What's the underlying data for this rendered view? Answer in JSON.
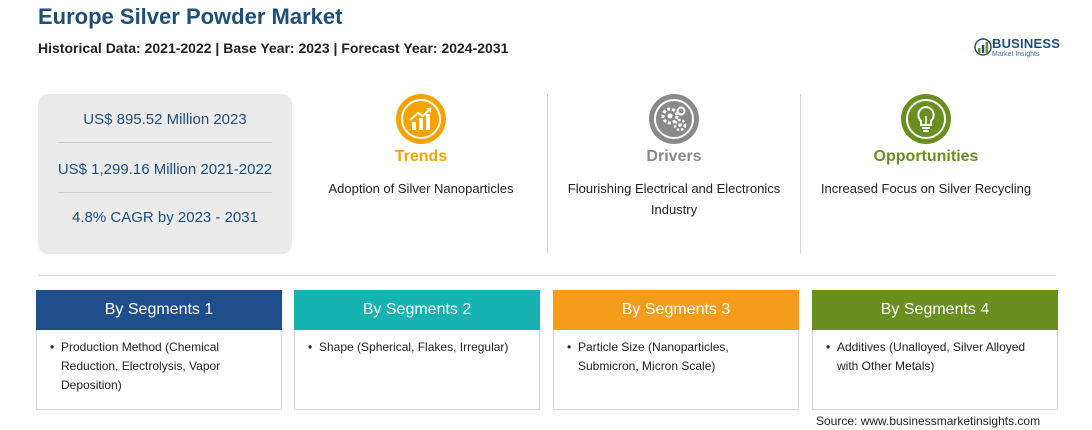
{
  "header": {
    "title": "Europe Silver Powder Market",
    "subtitle": "Historical Data: 2021-2022 | Base Year: 2023 | Forecast Year: 2024-2031"
  },
  "logo": {
    "brand": "BUSINESS",
    "tagline": "Market Insights",
    "icon": "bar-chart-logo-icon",
    "color": "#1f4e79"
  },
  "stats": [
    "US$ 895.52 Million 2023",
    "US$ 1,299.16 Million 2021-2022",
    "4.8% CAGR by 2023 - 2031"
  ],
  "features": [
    {
      "title": "Trends",
      "description": "Adoption of Silver Nanoparticles",
      "icon": "trend-chart-icon",
      "color": "#f5a300"
    },
    {
      "title": "Drivers",
      "description": "Flourishing Electrical and Electronics Industry",
      "icon": "gears-icon",
      "color": "#8a8a8a"
    },
    {
      "title": "Opportunities",
      "description": "Increased Focus on Silver Recycling",
      "icon": "lightbulb-icon",
      "color": "#6a8f1f"
    }
  ],
  "segments": [
    {
      "title": "By Segments 1",
      "color": "#1f4e8c",
      "items": [
        "Production Method (Chemical Reduction, Electrolysis, Vapor Deposition)"
      ]
    },
    {
      "title": "By Segments 2",
      "color": "#17b3b3",
      "items": [
        "Shape (Spherical, Flakes, Irregular)"
      ]
    },
    {
      "title": "By Segments 3",
      "color": "#f59c1a",
      "items": [
        "Particle Size (Nanoparticles, Submicron, Micron Scale)"
      ]
    },
    {
      "title": "By Segments 4",
      "color": "#6a8f1f",
      "items": [
        "Additives (Unalloyed, Silver Alloyed with Other Metals)"
      ]
    }
  ],
  "footer": {
    "source": "Source: www.businessmarketinsights.com"
  }
}
